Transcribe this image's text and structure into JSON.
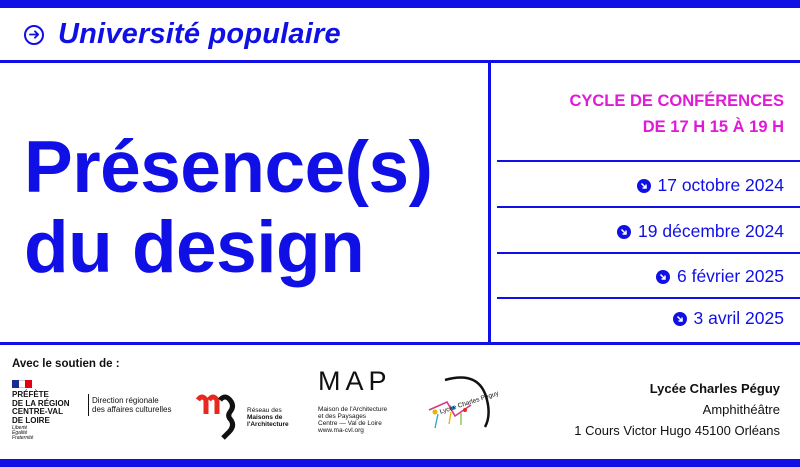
{
  "header": {
    "title": "Université populaire",
    "icon": "arrow-circle-right-icon"
  },
  "main_title": {
    "line1": "Présence(s)",
    "line2": "du design"
  },
  "cycle": {
    "line1": "CYCLE DE CONFÉRENCES",
    "line2": "DE 17 H 15 À 19 H"
  },
  "dates": [
    {
      "label": "17 octobre 2024"
    },
    {
      "label": "19 décembre 2024"
    },
    {
      "label": "6 février 2025"
    },
    {
      "label": "3 avril 2025"
    }
  ],
  "support": {
    "label": "Avec le soutien de :",
    "prefecture": {
      "lines": [
        "PRÉFÈTE",
        "DE LA RÉGION",
        "CENTRE-VAL",
        "DE LOIRE"
      ],
      "motto": [
        "Liberté",
        "Égalité",
        "Fraternité"
      ],
      "drac": [
        "Direction régionale",
        "des affaires culturelles"
      ]
    },
    "rma": {
      "lines": [
        "Réseau des",
        "Maisons de",
        "l'Architecture"
      ]
    },
    "map": {
      "letters": "MAP",
      "lines": [
        "Maison de l'Architecture",
        "et des Paysages",
        "Centre — Val de Loire",
        "www.ma-cvl.org"
      ]
    },
    "peguy": {
      "text": "Lycée Charles Péguy"
    }
  },
  "venue": {
    "name": "Lycée Charles Péguy",
    "room": "Amphithéâtre",
    "address": "1 Cours Victor Hugo 45100 Orléans"
  },
  "colors": {
    "primary": "#1010e6",
    "accent": "#e01ad6"
  }
}
